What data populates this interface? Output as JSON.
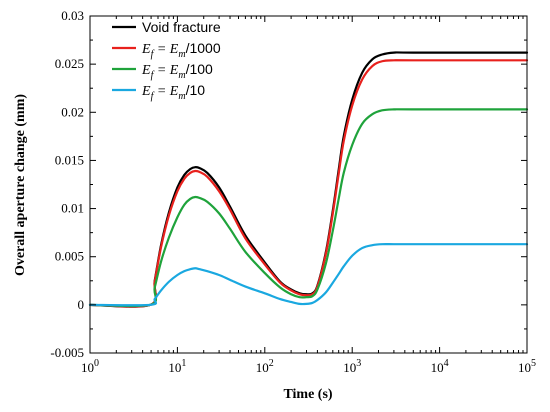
{
  "chart_data": {
    "type": "line",
    "xlabel": "Time (s)",
    "ylabel": "Overall aperture change (mm)",
    "xscale": "log",
    "xlim": [
      1,
      100000
    ],
    "ylim": [
      -0.005,
      0.03
    ],
    "x_ticks": [
      {
        "value": 1,
        "base": "10",
        "exp": "0"
      },
      {
        "value": 10,
        "base": "10",
        "exp": "1"
      },
      {
        "value": 100,
        "base": "10",
        "exp": "2"
      },
      {
        "value": 1000,
        "base": "10",
        "exp": "3"
      },
      {
        "value": 10000,
        "base": "10",
        "exp": "4"
      },
      {
        "value": 100000,
        "base": "10",
        "exp": "5"
      }
    ],
    "y_ticks": [
      {
        "value": -0.005,
        "label": "-0.005"
      },
      {
        "value": 0,
        "label": "0"
      },
      {
        "value": 0.005,
        "label": "0.005"
      },
      {
        "value": 0.01,
        "label": "0.01"
      },
      {
        "value": 0.015,
        "label": "0.015"
      },
      {
        "value": 0.02,
        "label": "0.02"
      },
      {
        "value": 0.025,
        "label": "0.025"
      },
      {
        "value": 0.03,
        "label": "0.03"
      }
    ],
    "grid": false,
    "legend_position": "top-left",
    "legend": [
      {
        "text": "Void fracture",
        "color": "#000000"
      },
      {
        "sym1": "E",
        "sub1": "f",
        "eq": " = ",
        "sym2": "E",
        "sub2": "m",
        "tail": "/1000",
        "color": "#e8211d"
      },
      {
        "sym1": "E",
        "sub1": "f",
        "eq": " = ",
        "sym2": "E",
        "sub2": "m",
        "tail": "/100",
        "color": "#1fa33b"
      },
      {
        "sym1": "E",
        "sub1": "f",
        "eq": " = ",
        "sym2": "E",
        "sub2": "m",
        "tail": "/10",
        "color": "#1aa8e0"
      }
    ],
    "series": [
      {
        "color": "#000000",
        "points": [
          [
            1,
            0
          ],
          [
            4.9,
            0
          ],
          [
            5.5,
            0.0025
          ],
          [
            6.5,
            0.0062
          ],
          [
            8,
            0.0096
          ],
          [
            10,
            0.0122
          ],
          [
            12,
            0.0135
          ],
          [
            14,
            0.0141
          ],
          [
            16,
            0.0143
          ],
          [
            18,
            0.0142
          ],
          [
            22,
            0.0137
          ],
          [
            30,
            0.0122
          ],
          [
            40,
            0.0102
          ],
          [
            60,
            0.0072
          ],
          [
            100,
            0.0044
          ],
          [
            150,
            0.0024
          ],
          [
            200,
            0.0016
          ],
          [
            250,
            0.0012
          ],
          [
            300,
            0.0011
          ],
          [
            350,
            0.0012
          ],
          [
            400,
            0.002
          ],
          [
            500,
            0.0055
          ],
          [
            600,
            0.0098
          ],
          [
            700,
            0.014
          ],
          [
            800,
            0.0175
          ],
          [
            1000,
            0.0213
          ],
          [
            1300,
            0.0241
          ],
          [
            1700,
            0.0255
          ],
          [
            2200,
            0.026
          ],
          [
            3000,
            0.0262
          ],
          [
            5000,
            0.0262
          ],
          [
            100000,
            0.0262
          ]
        ]
      },
      {
        "color": "#e8211d",
        "points": [
          [
            1,
            0
          ],
          [
            4.9,
            0
          ],
          [
            5.5,
            0.0024
          ],
          [
            6.5,
            0.006
          ],
          [
            8,
            0.0093
          ],
          [
            10,
            0.0118
          ],
          [
            12,
            0.0131
          ],
          [
            14,
            0.0137
          ],
          [
            16,
            0.0139
          ],
          [
            18,
            0.0138
          ],
          [
            22,
            0.0133
          ],
          [
            30,
            0.0118
          ],
          [
            40,
            0.0099
          ],
          [
            60,
            0.0069
          ],
          [
            100,
            0.0042
          ],
          [
            150,
            0.0023
          ],
          [
            200,
            0.0015
          ],
          [
            250,
            0.0011
          ],
          [
            300,
            0.001
          ],
          [
            350,
            0.0011
          ],
          [
            400,
            0.0019
          ],
          [
            500,
            0.0053
          ],
          [
            600,
            0.0095
          ],
          [
            700,
            0.0136
          ],
          [
            800,
            0.017
          ],
          [
            1000,
            0.0207
          ],
          [
            1300,
            0.0234
          ],
          [
            1700,
            0.0248
          ],
          [
            2200,
            0.0253
          ],
          [
            3000,
            0.0254
          ],
          [
            5000,
            0.0254
          ],
          [
            100000,
            0.0254
          ]
        ]
      },
      {
        "color": "#1fa33b",
        "points": [
          [
            1,
            0
          ],
          [
            4.9,
            0
          ],
          [
            5.5,
            0.0018
          ],
          [
            6.5,
            0.0045
          ],
          [
            8,
            0.007
          ],
          [
            10,
            0.0091
          ],
          [
            12,
            0.0104
          ],
          [
            14,
            0.011
          ],
          [
            16,
            0.0112
          ],
          [
            18,
            0.0111
          ],
          [
            22,
            0.0107
          ],
          [
            30,
            0.0095
          ],
          [
            40,
            0.0079
          ],
          [
            60,
            0.0055
          ],
          [
            100,
            0.0033
          ],
          [
            150,
            0.0018
          ],
          [
            200,
            0.0011
          ],
          [
            250,
            0.0008
          ],
          [
            300,
            0.0008
          ],
          [
            350,
            0.0009
          ],
          [
            400,
            0.0016
          ],
          [
            500,
            0.0043
          ],
          [
            600,
            0.0077
          ],
          [
            700,
            0.011
          ],
          [
            800,
            0.0137
          ],
          [
            1000,
            0.0166
          ],
          [
            1300,
            0.0188
          ],
          [
            1700,
            0.0198
          ],
          [
            2200,
            0.0202
          ],
          [
            3000,
            0.0203
          ],
          [
            5000,
            0.0203
          ],
          [
            100000,
            0.0203
          ]
        ]
      },
      {
        "color": "#1aa8e0",
        "points": [
          [
            1,
            0
          ],
          [
            4.9,
            0
          ],
          [
            5.5,
            0.0006
          ],
          [
            6.5,
            0.0015
          ],
          [
            8,
            0.0024
          ],
          [
            10,
            0.0031
          ],
          [
            12,
            0.0035
          ],
          [
            14,
            0.0037
          ],
          [
            16,
            0.0038
          ],
          [
            18,
            0.0037
          ],
          [
            22,
            0.0035
          ],
          [
            30,
            0.0031
          ],
          [
            40,
            0.0026
          ],
          [
            60,
            0.0019
          ],
          [
            100,
            0.0012
          ],
          [
            150,
            0.0006
          ],
          [
            200,
            0.0003
          ],
          [
            250,
            0.0001
          ],
          [
            300,
            0.0001
          ],
          [
            350,
            0.0002
          ],
          [
            400,
            0.0005
          ],
          [
            500,
            0.0013
          ],
          [
            600,
            0.0023
          ],
          [
            700,
            0.0032
          ],
          [
            800,
            0.004
          ],
          [
            1000,
            0.0051
          ],
          [
            1300,
            0.0059
          ],
          [
            1700,
            0.0062
          ],
          [
            2200,
            0.0063
          ],
          [
            3000,
            0.0063
          ],
          [
            5000,
            0.0063
          ],
          [
            100000,
            0.0063
          ]
        ]
      }
    ]
  }
}
